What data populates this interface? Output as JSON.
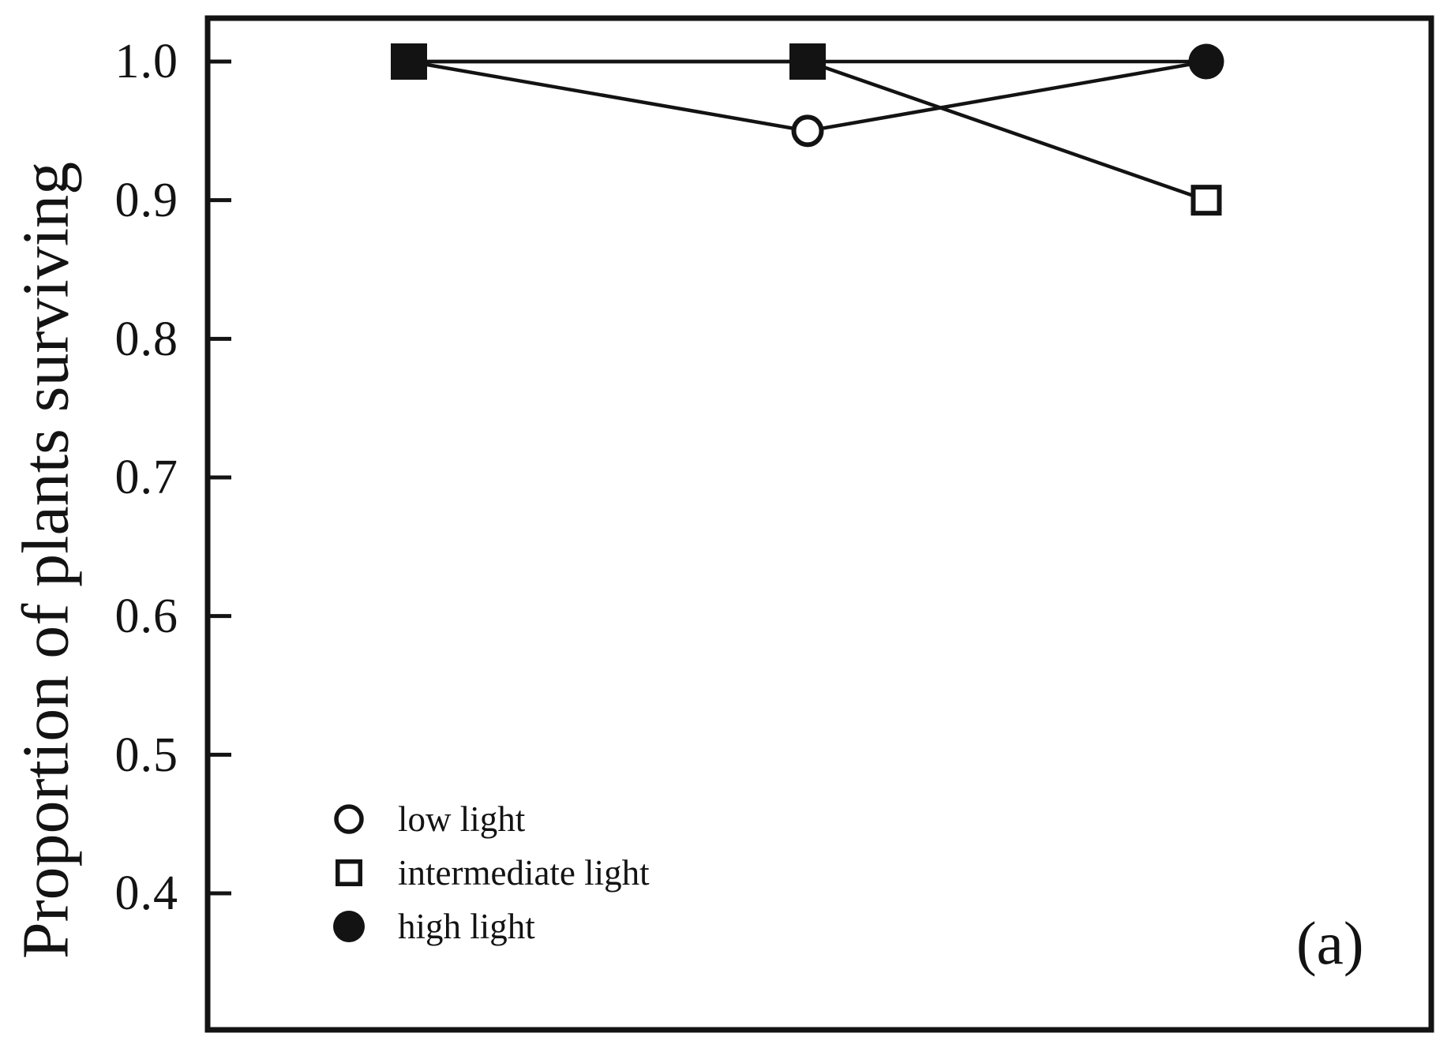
{
  "figure": {
    "background": "#ffffff"
  },
  "chart_data": {
    "type": "line",
    "title": "",
    "xlabel": "",
    "ylabel": "Proportion of plants surviving",
    "panel_label": "(a)",
    "x_axis": {
      "tick_labels_visible": false,
      "n_points": 3
    },
    "ylim": [
      0.3,
      1.03
    ],
    "yticks": [
      1.0,
      0.9,
      0.8,
      0.7,
      0.6,
      0.5,
      0.4
    ],
    "ytick_labels": [
      "1.0",
      "0.9",
      "0.8",
      "0.7",
      "0.6",
      "0.5",
      "0.4"
    ],
    "series": [
      {
        "name": "low light",
        "marker": "open-circle",
        "values": [
          1.0,
          0.95,
          1.0
        ]
      },
      {
        "name": "intermediate light",
        "marker": "open-square",
        "values": [
          1.0,
          1.0,
          0.9
        ]
      },
      {
        "name": "high light",
        "marker": "filled-circle",
        "values": [
          1.0,
          1.0,
          1.0
        ]
      }
    ],
    "marker_draw_order": [
      "low light",
      "high light",
      "intermediate light"
    ],
    "marker_overrides": [
      {
        "x_index": 0,
        "y": 1.0,
        "shape": "filled-square"
      },
      {
        "x_index": 1,
        "y": 1.0,
        "shape": "filled-square"
      }
    ],
    "legend": {
      "position": "lower-left",
      "entries": [
        "low light",
        "intermediate light",
        "high light"
      ]
    },
    "colors": {
      "ink": "#131313",
      "background": "#ffffff"
    }
  }
}
